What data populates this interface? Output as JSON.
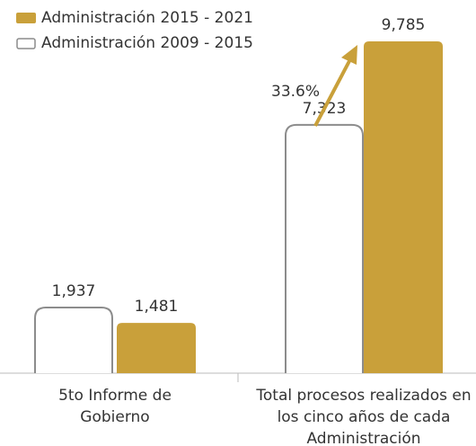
{
  "chart_data": {
    "type": "bar",
    "categories": [
      "5to Informe de Gobierno",
      "Total procesos realizados en los cinco años de cada Administración"
    ],
    "series": [
      {
        "name": "Administración 2015 - 2021",
        "color": "#c9a03a",
        "style": "filled",
        "values": [
          1481,
          9785
        ],
        "value_labels": [
          "1,481",
          "9,785"
        ]
      },
      {
        "name": "Administración 2009 - 2015",
        "color": "#8c8c8c",
        "style": "outline",
        "values": [
          1937,
          7323
        ],
        "value_labels": [
          "1,937",
          "7,323"
        ]
      }
    ],
    "annotation": "33.6%"
  }
}
